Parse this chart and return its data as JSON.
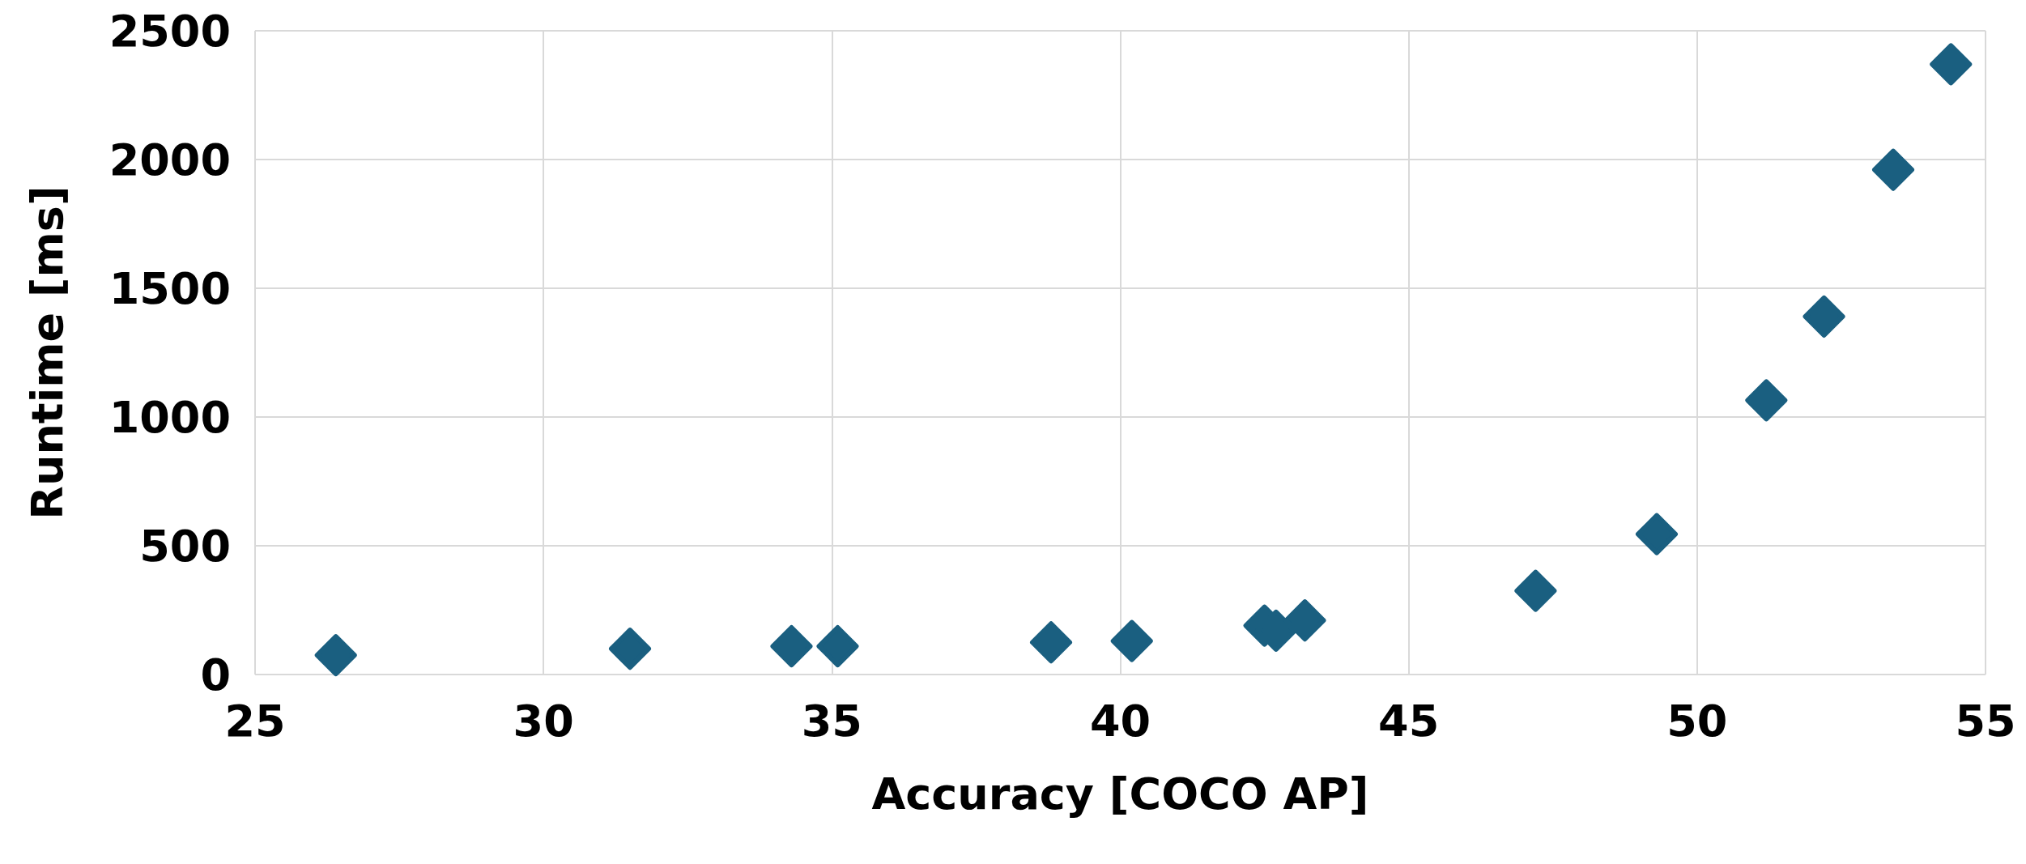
{
  "chart_data": {
    "type": "scatter",
    "xlabel": "Accuracy [COCO AP]",
    "ylabel": "Runtime [ms]",
    "x": [
      26.4,
      31.5,
      34.3,
      35.1,
      38.8,
      40.2,
      42.5,
      42.7,
      43.2,
      47.2,
      49.3,
      51.2,
      52.2,
      53.4,
      54.4
    ],
    "series": [
      {
        "color": "#1a5f80",
        "values": [
          75,
          100,
          110,
          110,
          125,
          130,
          190,
          170,
          210,
          325,
          545,
          1065,
          1390,
          1960,
          2370
        ]
      }
    ],
    "xlim": [
      25,
      55
    ],
    "xticks": [
      25,
      30,
      35,
      40,
      45,
      50,
      55
    ],
    "ylim": [
      0,
      2500
    ],
    "yticks": [
      0,
      500,
      1000,
      1500,
      2000,
      2500
    ],
    "grid": true,
    "marker": "diamond"
  }
}
